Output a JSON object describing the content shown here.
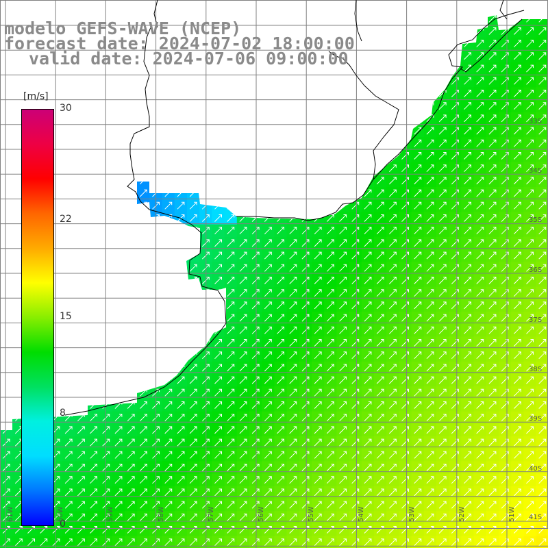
{
  "header": {
    "model": "modelo GEFS-WAVE (NCEP)",
    "forecast": "forecast date: 2024-07-02 18:00:00",
    "valid": "valid date: 2024-07-06 09:00:00"
  },
  "colorbar": {
    "units": "[m/s]",
    "ticks": [
      "30",
      "22",
      "15",
      "8",
      "0"
    ],
    "tick_values": [
      30,
      22,
      15,
      8,
      0
    ],
    "range": [
      0,
      30
    ],
    "colors": [
      "#0000ff",
      "#0077ff",
      "#00ddff",
      "#00f0e0",
      "#00e060",
      "#00dd00",
      "#88ee00",
      "#ffff00",
      "#ffaa00",
      "#ff6600",
      "#ff0000",
      "#ee0044",
      "#cc0077"
    ]
  },
  "map": {
    "lat_labels": [
      "33S",
      "34S",
      "35S",
      "36S",
      "37S",
      "38S",
      "39S",
      "40S",
      "41S"
    ],
    "lon_labels": [
      "61W",
      "60W",
      "59W",
      "58W",
      "57W",
      "56W",
      "55W",
      "54W",
      "53W",
      "52W",
      "51W"
    ],
    "land_color": "#ffffff",
    "coast_color": "#000000",
    "grid_color": "#808080",
    "arrow_color": "#ffffff"
  }
}
